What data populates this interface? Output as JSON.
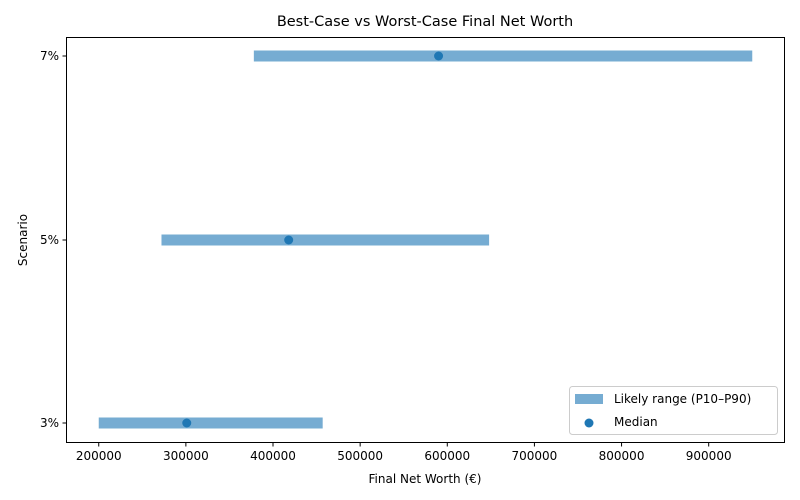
{
  "chart_data": {
    "type": "range-bar",
    "orientation": "horizontal",
    "title": "Best-Case vs Worst-Case Final Net Worth",
    "xlabel": "Final Net Worth (€)",
    "ylabel": "Scenario",
    "categories": [
      "3%",
      "5%",
      "7%"
    ],
    "series": [
      {
        "name": "Likely range (P10–P90)",
        "kind": "range",
        "color": "#76acd2",
        "low": [
          200000,
          272000,
          378000
        ],
        "high": [
          457000,
          648000,
          950000
        ]
      },
      {
        "name": "Median",
        "kind": "scatter",
        "color": "#1f77b4",
        "values": [
          301000,
          418000,
          590000
        ]
      }
    ],
    "xlim": [
      163000,
      987000
    ],
    "xticks": [
      200000,
      300000,
      400000,
      500000,
      600000,
      700000,
      800000,
      900000
    ],
    "xtick_labels": [
      "200000",
      "300000",
      "400000",
      "500000",
      "600000",
      "700000",
      "800000",
      "900000"
    ],
    "grid": false,
    "legend": {
      "position": "lower right",
      "entries": [
        "Likely range (P10–P90)",
        "Median"
      ]
    }
  }
}
